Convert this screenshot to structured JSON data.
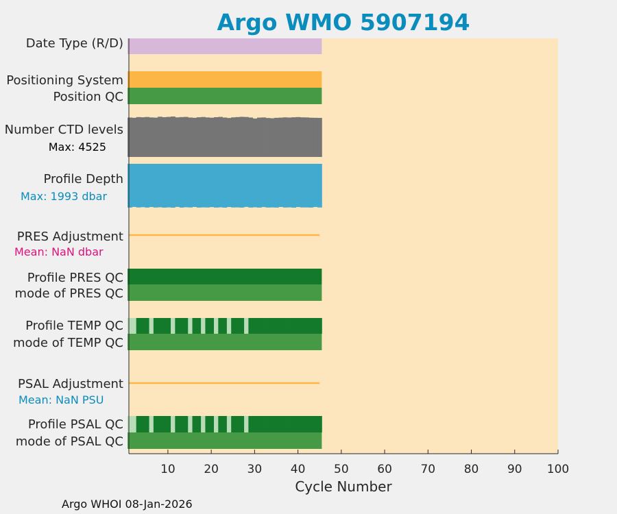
{
  "chart_data": {
    "type": "bar",
    "title": "Argo WMO 5907194",
    "xlabel": "Cycle Number",
    "xlim": [
      1,
      100
    ],
    "xticks": [
      10,
      20,
      30,
      40,
      50,
      60,
      70,
      80,
      90,
      100
    ],
    "n_cycles": 45,
    "rows": [
      {
        "label": "Date Type (R/D)",
        "kind": "band",
        "color": "#d8b8d8"
      },
      {
        "label": "Positioning System",
        "kind": "band",
        "color": "#fcb645"
      },
      {
        "label": "Position QC",
        "kind": "band",
        "color": "#469945"
      },
      {
        "label": "Number CTD levels",
        "kind": "levels",
        "color": "#757575",
        "sublabel": "Max: 4525",
        "subcolor": "#000000",
        "values": [
          4410,
          4380,
          4460,
          4440,
          4470,
          4420,
          4400,
          4500,
          4450,
          4480,
          4525,
          4430,
          4460,
          4480,
          4410,
          4380,
          4440,
          4470,
          4420,
          4390,
          4450,
          4480,
          4410,
          4360,
          4430,
          4460,
          4490,
          4470,
          4410,
          4300,
          4400,
          4420,
          4360,
          4330,
          4380,
          4400,
          4430,
          4410,
          4440,
          4460,
          4430,
          4420,
          4390,
          4380,
          4370
        ]
      },
      {
        "label": "Profile Depth",
        "kind": "depth",
        "color": "#42aacf",
        "sublabel": "Max: 1993 dbar",
        "subcolor": "#0a8cbd",
        "values": [
          1990,
          1960,
          1985,
          1970,
          1990,
          1965,
          1988,
          1975,
          1992,
          1980,
          1993,
          1958,
          1990,
          1975,
          1985,
          1962,
          1990,
          1980,
          1986,
          1968,
          1990,
          1978,
          1992,
          1964,
          1985,
          1982,
          1990,
          1960,
          1989,
          1976,
          1991,
          1966,
          1988,
          1983,
          1990,
          1961,
          1987,
          1979,
          1993,
          1965,
          1984,
          1982,
          1989,
          1963,
          1986
        ]
      },
      {
        "label": "PRES Adjustment",
        "kind": "line",
        "color": "#fcb645",
        "sublabel": "Mean:  NaN dbar",
        "subcolor": "#e0107c"
      },
      {
        "label": "Profile PRES QC",
        "kind": "band",
        "color": "#147a2b"
      },
      {
        "label": "mode of PRES QC",
        "kind": "band",
        "color": "#469945"
      },
      {
        "label": "Profile TEMP QC",
        "kind": "qc",
        "color": "#147a2b",
        "alt": "#b7dcb7",
        "light_cycles": [
          1,
          2,
          6,
          11,
          15,
          18,
          21,
          24,
          28
        ]
      },
      {
        "label": "mode of TEMP QC",
        "kind": "band",
        "color": "#469945"
      },
      {
        "label": "PSAL Adjustment",
        "kind": "line",
        "color": "#fcb645",
        "sublabel": "Mean:  NaN PSU",
        "subcolor": "#0a8cbd"
      },
      {
        "label": "Profile PSAL QC",
        "kind": "qc",
        "color": "#147a2b",
        "alt": "#b7dcb7",
        "light_cycles": [
          1,
          2,
          6,
          11,
          15,
          18,
          21,
          24,
          28
        ]
      },
      {
        "label": "mode of PSAL QC",
        "kind": "band",
        "color": "#469945"
      }
    ],
    "background": "#fde6be"
  },
  "footer": "Argo WHOI 08-Jan-2026"
}
